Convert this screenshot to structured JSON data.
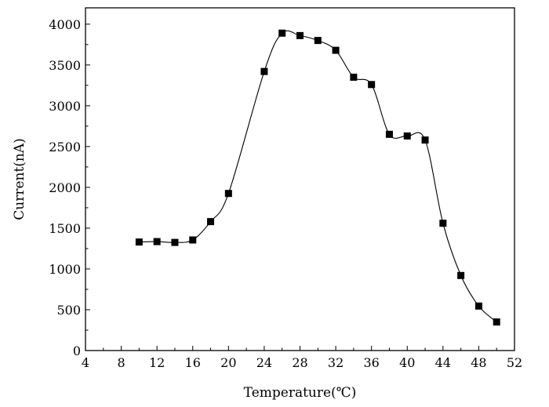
{
  "chart_data": {
    "type": "scatter",
    "title": "",
    "xlabel": "Temperature(℃)",
    "ylabel": "Current(nA)",
    "xlim": [
      4,
      52
    ],
    "ylim": [
      0,
      4200
    ],
    "xticks": [
      "4",
      "8",
      "12",
      "16",
      "20",
      "24",
      "28",
      "32",
      "36",
      "40",
      "44",
      "48",
      "52"
    ],
    "yticks": [
      "0",
      "500",
      "1000",
      "1500",
      "2000",
      "2500",
      "3000",
      "3500",
      "4000"
    ],
    "grid": false,
    "legend": "none",
    "series": [
      {
        "name": "Current",
        "marker": "square",
        "line": "smooth",
        "color": "#000000",
        "x": [
          10,
          12,
          14,
          16,
          18,
          20,
          24,
          26,
          28,
          30,
          32,
          34,
          36,
          38,
          40,
          42,
          44,
          46,
          48,
          50
        ],
        "y": [
          1330,
          1335,
          1325,
          1355,
          1580,
          1925,
          3420,
          3890,
          3860,
          3800,
          3680,
          3350,
          3260,
          2650,
          2630,
          2580,
          1560,
          920,
          545,
          350
        ]
      }
    ]
  }
}
